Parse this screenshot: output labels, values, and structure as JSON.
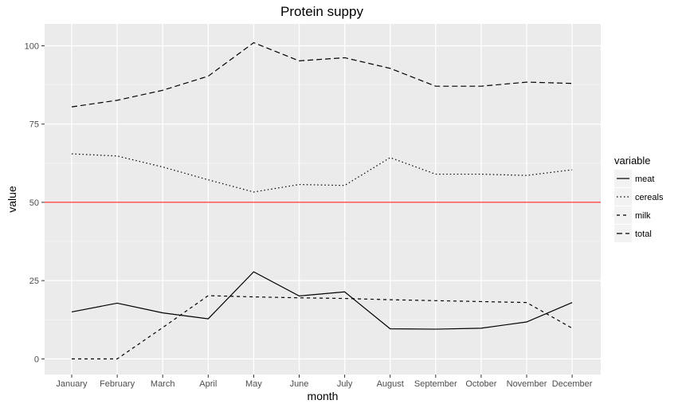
{
  "chart_data": {
    "type": "line",
    "title": "Protein suppy",
    "xlabel": "month",
    "ylabel": "value",
    "categories": [
      "January",
      "February",
      "March",
      "April",
      "May",
      "June",
      "July",
      "August",
      "September",
      "October",
      "November",
      "December"
    ],
    "ylim": [
      -5,
      107
    ],
    "yticks": [
      0,
      25,
      50,
      75,
      100
    ],
    "grid": true,
    "legend": {
      "title": "variable",
      "position": "right"
    },
    "series": [
      {
        "name": "meat",
        "dash": "solid",
        "color": "#000000",
        "values": [
          15,
          17.8,
          14.7,
          12.8,
          27.8,
          20.1,
          21.4,
          9.6,
          9.5,
          9.8,
          11.8,
          18
        ]
      },
      {
        "name": "cereals",
        "dash": "dotted",
        "color": "#000000",
        "values": [
          65.5,
          64.8,
          61.3,
          57.2,
          53.3,
          55.7,
          55.4,
          64.3,
          59,
          59,
          58.6,
          60.4
        ]
      },
      {
        "name": "milk",
        "dash": "dashed",
        "color": "#000000",
        "values": [
          0,
          0,
          10,
          20.2,
          19.8,
          19.5,
          19.3,
          18.9,
          18.6,
          18.3,
          18,
          9.8
        ]
      },
      {
        "name": "total",
        "dash": "longdash",
        "color": "#000000",
        "values": [
          80.5,
          82.6,
          85.8,
          90.3,
          101,
          95.2,
          96.2,
          92.8,
          87.1,
          87.1,
          88.4,
          88
        ]
      }
    ],
    "reference_line": {
      "y": 50,
      "color": "#ff0000"
    },
    "colors": {
      "panel_background": "#ebebeb",
      "grid": "#ffffff",
      "tick_text": "#4d4d4d"
    }
  }
}
